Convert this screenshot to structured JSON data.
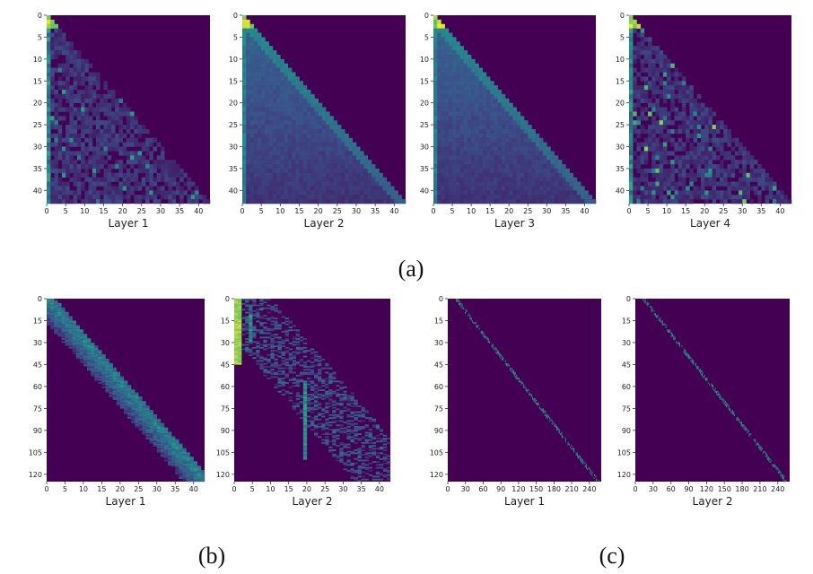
{
  "figure": {
    "panels": [
      {
        "label": "(a)"
      },
      {
        "label": "(b)"
      },
      {
        "label": "(c)"
      }
    ]
  },
  "colors": {
    "background_low": "#440154",
    "mid": "#3b528b",
    "teal": "#21918c",
    "green": "#5ec962",
    "yellow": "#fde725"
  },
  "chart_data": [
    {
      "type": "heatmap",
      "panel": "(a)",
      "title": "Layer 1",
      "pattern": "causal-sparse",
      "x_ticks": [
        "0",
        "5",
        "10",
        "15",
        "20",
        "25",
        "30",
        "35",
        "40"
      ],
      "y_ticks": [
        "0",
        "5",
        "10",
        "15",
        "20",
        "25",
        "30",
        "35",
        "40"
      ],
      "xlim": [
        0,
        43
      ],
      "ylim": [
        0,
        43
      ]
    },
    {
      "type": "heatmap",
      "panel": "(a)",
      "title": "Layer 2",
      "pattern": "causal-smooth",
      "x_ticks": [
        "0",
        "5",
        "10",
        "15",
        "20",
        "25",
        "30",
        "35",
        "40"
      ],
      "y_ticks": [
        "0",
        "5",
        "10",
        "15",
        "20",
        "25",
        "30",
        "35",
        "40"
      ],
      "xlim": [
        0,
        43
      ],
      "ylim": [
        0,
        43
      ]
    },
    {
      "type": "heatmap",
      "panel": "(a)",
      "title": "Layer 3",
      "pattern": "causal-smooth",
      "x_ticks": [
        "0",
        "5",
        "10",
        "15",
        "20",
        "25",
        "30",
        "35",
        "40"
      ],
      "y_ticks": [
        "0",
        "5",
        "10",
        "15",
        "20",
        "25",
        "30",
        "35",
        "40"
      ],
      "xlim": [
        0,
        43
      ],
      "ylim": [
        0,
        43
      ]
    },
    {
      "type": "heatmap",
      "panel": "(a)",
      "title": "Layer 4",
      "pattern": "causal-sparse-bright",
      "x_ticks": [
        "0",
        "5",
        "10",
        "15",
        "20",
        "25",
        "30",
        "35",
        "40"
      ],
      "y_ticks": [
        "0",
        "5",
        "10",
        "15",
        "20",
        "25",
        "30",
        "35",
        "40"
      ],
      "xlim": [
        0,
        43
      ],
      "ylim": [
        0,
        43
      ]
    },
    {
      "type": "heatmap",
      "panel": "(b)",
      "title": "Layer 1",
      "pattern": "diagonal-band",
      "x_ticks": [
        "0",
        "5",
        "10",
        "15",
        "20",
        "25",
        "30",
        "35",
        "40"
      ],
      "y_ticks": [
        "0",
        "15",
        "30",
        "45",
        "60",
        "75",
        "90",
        "105",
        "120"
      ],
      "xlim": [
        0,
        43
      ],
      "ylim": [
        0,
        125
      ]
    },
    {
      "type": "heatmap",
      "panel": "(b)",
      "title": "Layer 2",
      "pattern": "scattered",
      "x_ticks": [
        "0",
        "5",
        "10",
        "15",
        "20",
        "25",
        "30",
        "35",
        "40"
      ],
      "y_ticks": [
        "0",
        "15",
        "30",
        "45",
        "60",
        "75",
        "90",
        "105",
        "120"
      ],
      "xlim": [
        0,
        43
      ],
      "ylim": [
        0,
        125
      ]
    },
    {
      "type": "heatmap",
      "panel": "(c)",
      "title": "Layer 1",
      "pattern": "thin-diagonal",
      "x_ticks": [
        "0",
        "30",
        "60",
        "90",
        "120",
        "150",
        "180",
        "210",
        "240"
      ],
      "y_ticks": [
        "0",
        "15",
        "30",
        "45",
        "60",
        "75",
        "90",
        "105",
        "120"
      ],
      "xlim": [
        0,
        260
      ],
      "ylim": [
        0,
        125
      ]
    },
    {
      "type": "heatmap",
      "panel": "(c)",
      "title": "Layer 2",
      "pattern": "thin-diagonal",
      "x_ticks": [
        "0",
        "30",
        "60",
        "90",
        "120",
        "150",
        "180",
        "210",
        "240"
      ],
      "y_ticks": [
        "0",
        "15",
        "30",
        "45",
        "60",
        "75",
        "90",
        "105",
        "120"
      ],
      "xlim": [
        0,
        260
      ],
      "ylim": [
        0,
        125
      ]
    }
  ]
}
